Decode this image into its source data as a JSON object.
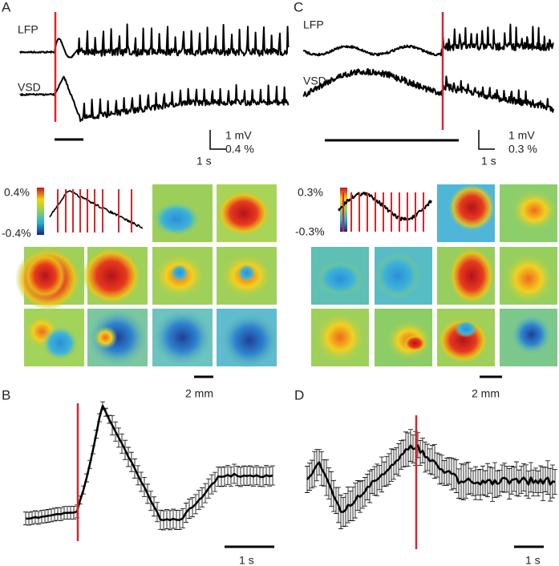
{
  "panel_a": {
    "label": "A",
    "lfp": "LFP",
    "vsd": "VSD",
    "scale_v1": "1 mV",
    "scale_v2": "0.4 %",
    "scale_h": "1 s",
    "cbar_top": "0.4%",
    "cbar_bottom": "-0.4%",
    "map_scale": "2 mm"
  },
  "panel_b": {
    "label": "B",
    "scale_h": "1 s"
  },
  "panel_c": {
    "label": "C",
    "lfp": "LFP",
    "vsd": "VSD",
    "scale_v1": "1 mV",
    "scale_v2": "0.3 %",
    "scale_h": "1 s",
    "cbar_top": "0.3%",
    "cbar_bottom": "-0.3%",
    "map_scale": "2 mm"
  },
  "panel_d": {
    "label": "D",
    "scale_h": "1 s"
  }
}
